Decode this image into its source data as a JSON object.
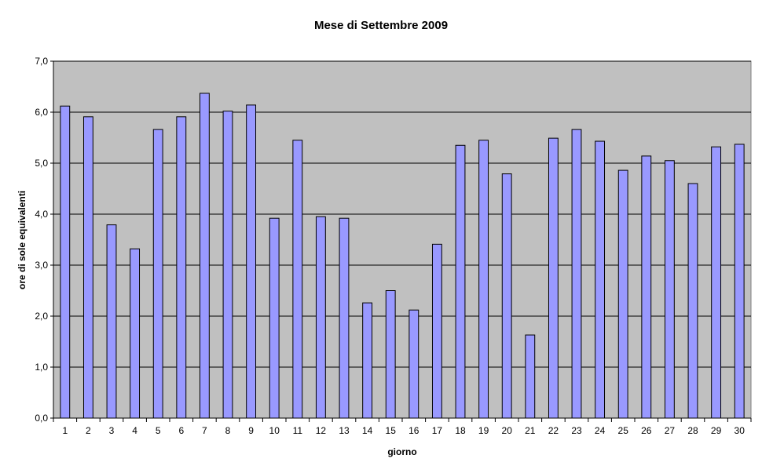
{
  "chart_data": {
    "type": "bar",
    "title": "Mese di Settembre 2009",
    "xlabel": "giorno",
    "ylabel": "ore di sole equivalenti",
    "ylim": [
      0,
      7
    ],
    "ytick_step": 1,
    "ytick_labels": [
      "0,0",
      "1,0",
      "2,0",
      "3,0",
      "4,0",
      "5,0",
      "6,0",
      "7,0"
    ],
    "grid": true,
    "legend": "none",
    "colors": {
      "bar": "#9999ff",
      "plot_background": "#c0c0c0"
    },
    "categories": [
      "1",
      "2",
      "3",
      "4",
      "5",
      "6",
      "7",
      "8",
      "9",
      "10",
      "11",
      "12",
      "13",
      "14",
      "15",
      "16",
      "17",
      "18",
      "19",
      "20",
      "21",
      "22",
      "23",
      "24",
      "25",
      "26",
      "27",
      "28",
      "29",
      "30"
    ],
    "values": [
      6.12,
      5.91,
      3.79,
      3.32,
      5.66,
      5.91,
      6.37,
      6.02,
      6.14,
      3.92,
      5.45,
      3.95,
      3.92,
      2.26,
      2.5,
      2.12,
      3.41,
      5.35,
      5.45,
      4.79,
      1.63,
      5.49,
      5.66,
      5.43,
      4.86,
      5.14,
      5.05,
      4.6,
      5.32,
      5.37
    ]
  }
}
